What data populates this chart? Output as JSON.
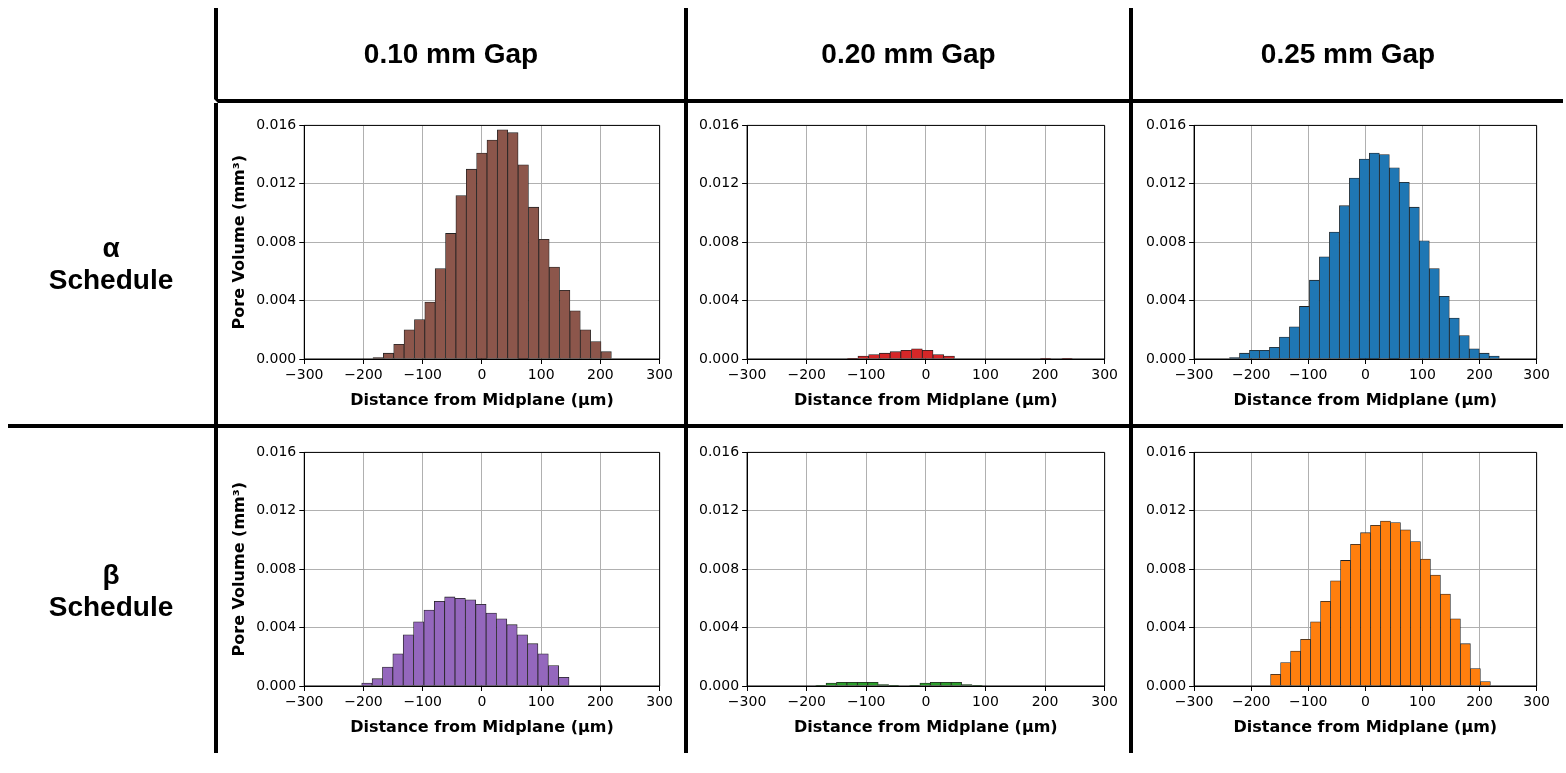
{
  "chart_data": [
    {
      "type": "histogram",
      "title": "0.10 mm Gap",
      "annotations": [
        "α Schedule"
      ],
      "xlabel": "Distance from Midplane (µm)",
      "ylabel": "Pore Volume (mm³)",
      "color": "#8c564b",
      "grid": true,
      "bins": [
        -184,
        -166.5,
        -149,
        -131.5,
        -114,
        -96.5,
        -79,
        -61.5,
        -44,
        -26.5,
        -9,
        8.5,
        26,
        43.5,
        61,
        78.5,
        96,
        113.5,
        131,
        148.5,
        166,
        183.5,
        201,
        218.5
      ],
      "values": [
        0.0001,
        0.0004,
        0.001,
        0.002,
        0.0027,
        0.0039,
        0.0062,
        0.0086,
        0.0112,
        0.013,
        0.0141,
        0.015,
        0.0157,
        0.0155,
        0.0133,
        0.0104,
        0.0082,
        0.0063,
        0.0047,
        0.0033,
        0.002,
        0.0012,
        0.0005
      ],
      "xlim": [
        -300,
        300
      ],
      "xticks": [
        {
          "value": -300,
          "label": "−300"
        },
        {
          "value": -200,
          "label": "−200"
        },
        {
          "value": -100,
          "label": "−100"
        },
        0,
        100,
        200,
        300
      ],
      "ylim": [
        0,
        0.016
      ],
      "yticks": [
        {
          "value": 0,
          "label": "0.000"
        },
        {
          "value": 0.004,
          "label": "0.004"
        },
        {
          "value": 0.008,
          "label": "0.008"
        },
        {
          "value": 0.012,
          "label": "0.012"
        },
        {
          "value": 0.016,
          "label": "0.016"
        }
      ]
    },
    {
      "type": "histogram",
      "title": "0.20 mm Gap",
      "xlabel": "Distance from Midplane (µm)",
      "color": "#d62728",
      "grid": true,
      "bins": [
        -132,
        -114,
        -96,
        -78,
        -60,
        -42,
        -24,
        -6,
        12,
        30,
        48,
        66,
        84,
        102,
        120,
        138,
        156,
        174,
        192,
        210,
        228,
        246
      ],
      "values": [
        5e-05,
        0.0002,
        0.0003,
        0.0004,
        0.0005,
        0.0006,
        0.0007,
        0.0006,
        0.0003,
        0.0002,
        0,
        0,
        0,
        0,
        0,
        0,
        0,
        0,
        5e-05,
        0,
        5e-05
      ],
      "xlim": [
        -300,
        300
      ],
      "xticks": [
        {
          "value": -300,
          "label": "−300"
        },
        {
          "value": -200,
          "label": "−200"
        },
        {
          "value": -100,
          "label": "−100"
        },
        0,
        100,
        200,
        300
      ],
      "ylim": [
        0,
        0.016
      ],
      "yticks": [
        {
          "value": 0,
          "label": "0.000"
        },
        {
          "value": 0.004,
          "label": "0.004"
        },
        {
          "value": 0.008,
          "label": "0.008"
        },
        {
          "value": 0.012,
          "label": "0.012"
        },
        {
          "value": 0.016,
          "label": "0.016"
        }
      ]
    },
    {
      "type": "histogram",
      "title": "0.25 mm Gap",
      "xlabel": "Distance from Midplane (µm)",
      "color": "#1f77b4",
      "grid": true,
      "bins": [
        -238,
        -220.5,
        -203,
        -185.5,
        -168,
        -150.5,
        -133,
        -115.5,
        -98,
        -80.5,
        -63,
        -45.5,
        -28,
        -10.5,
        7,
        24.5,
        42,
        59.5,
        77,
        94.5,
        112,
        129.5,
        147,
        164.5,
        182,
        199.5,
        217,
        234.5
      ],
      "values": [
        0.0001,
        0.0004,
        0.0006,
        0.0006,
        0.0008,
        0.0015,
        0.0022,
        0.0036,
        0.0054,
        0.007,
        0.0087,
        0.0105,
        0.0124,
        0.0137,
        0.0141,
        0.014,
        0.0131,
        0.0121,
        0.0104,
        0.0081,
        0.0062,
        0.0043,
        0.0028,
        0.0016,
        0.0007,
        0.0004,
        0.0002
      ],
      "xlim": [
        -300,
        300
      ],
      "xticks": [
        {
          "value": -300,
          "label": "−300"
        },
        {
          "value": -200,
          "label": "−200"
        },
        {
          "value": -100,
          "label": "−100"
        },
        0,
        100,
        200,
        300
      ],
      "ylim": [
        0,
        0.016
      ],
      "yticks": [
        {
          "value": 0,
          "label": "0.000"
        },
        {
          "value": 0.004,
          "label": "0.004"
        },
        {
          "value": 0.008,
          "label": "0.008"
        },
        {
          "value": 0.012,
          "label": "0.012"
        },
        {
          "value": 0.016,
          "label": "0.016"
        }
      ]
    },
    {
      "type": "histogram",
      "annotations": [
        "β Schedule"
      ],
      "xlabel": "Distance from Midplane (µm)",
      "ylabel": "Pore Volume (mm³)",
      "color": "#9467bd",
      "grid": true,
      "bins": [
        -203,
        -185.5,
        -168,
        -150.5,
        -133,
        -115.5,
        -98,
        -80.5,
        -63,
        -45.5,
        -28,
        -10.5,
        7,
        24.5,
        42,
        59.5,
        77,
        94.5,
        112,
        129.5,
        147
      ],
      "values": [
        0.0002,
        0.0005,
        0.0013,
        0.0022,
        0.0035,
        0.0044,
        0.0052,
        0.0058,
        0.0061,
        0.006,
        0.0059,
        0.0056,
        0.005,
        0.0046,
        0.0042,
        0.0035,
        0.0029,
        0.0022,
        0.0014,
        0.0006
      ],
      "xlim": [
        -300,
        300
      ],
      "xticks": [
        {
          "value": -300,
          "label": "−300"
        },
        {
          "value": -200,
          "label": "−200"
        },
        {
          "value": -100,
          "label": "−100"
        },
        0,
        100,
        200,
        300
      ],
      "ylim": [
        0,
        0.016
      ],
      "yticks": [
        {
          "value": 0,
          "label": "0.000"
        },
        {
          "value": 0.004,
          "label": "0.004"
        },
        {
          "value": 0.008,
          "label": "0.008"
        },
        {
          "value": 0.012,
          "label": "0.012"
        },
        {
          "value": 0.016,
          "label": "0.016"
        }
      ]
    },
    {
      "type": "histogram",
      "xlabel": "Distance from Midplane (µm)",
      "color": "#2ca02c",
      "grid": true,
      "bins": [
        -185,
        -167.5,
        -150,
        -132.5,
        -115,
        -97.5,
        -80,
        -62.5,
        -45,
        -27.5,
        -10,
        7.5,
        25,
        42.5,
        60,
        77.5,
        95
      ],
      "values": [
        5e-05,
        0.0002,
        0.00025,
        0.00025,
        0.00025,
        0.00025,
        0.0001,
        5e-05,
        0,
        5e-05,
        0.0002,
        0.00025,
        0.00025,
        0.00025,
        0.0001,
        5e-05
      ],
      "xlim": [
        -300,
        300
      ],
      "xticks": [
        {
          "value": -300,
          "label": "−300"
        },
        {
          "value": -200,
          "label": "−200"
        },
        {
          "value": -100,
          "label": "−100"
        },
        0,
        100,
        200,
        300
      ],
      "ylim": [
        0,
        0.016
      ],
      "yticks": [
        {
          "value": 0,
          "label": "0.000"
        },
        {
          "value": 0.004,
          "label": "0.004"
        },
        {
          "value": 0.008,
          "label": "0.008"
        },
        {
          "value": 0.012,
          "label": "0.012"
        },
        {
          "value": 0.016,
          "label": "0.016"
        }
      ]
    },
    {
      "type": "histogram",
      "xlabel": "Distance from Midplane (µm)",
      "color": "#ff7f0e",
      "grid": true,
      "bins": [
        -166,
        -148.5,
        -131,
        -113.5,
        -96,
        -78.5,
        -61,
        -43.5,
        -26,
        -8.5,
        9,
        26.5,
        44,
        61.5,
        79,
        96.5,
        114,
        131.5,
        149,
        166.5,
        184,
        201.5,
        219
      ],
      "values": [
        0.0008,
        0.0016,
        0.0024,
        0.0032,
        0.0044,
        0.0058,
        0.0072,
        0.0086,
        0.0097,
        0.0105,
        0.011,
        0.0113,
        0.0112,
        0.0107,
        0.0099,
        0.0087,
        0.0076,
        0.0063,
        0.0046,
        0.0029,
        0.0012,
        0.0003
      ],
      "xlim": [
        -300,
        300
      ],
      "xticks": [
        {
          "value": -300,
          "label": "−300"
        },
        {
          "value": -200,
          "label": "−200"
        },
        {
          "value": -100,
          "label": "−100"
        },
        0,
        100,
        200,
        300
      ],
      "ylim": [
        0,
        0.016
      ],
      "yticks": [
        {
          "value": 0,
          "label": "0.000"
        },
        {
          "value": 0.004,
          "label": "0.004"
        },
        {
          "value": 0.008,
          "label": "0.008"
        },
        {
          "value": 0.012,
          "label": "0.012"
        },
        {
          "value": 0.016,
          "label": "0.016"
        }
      ]
    }
  ]
}
